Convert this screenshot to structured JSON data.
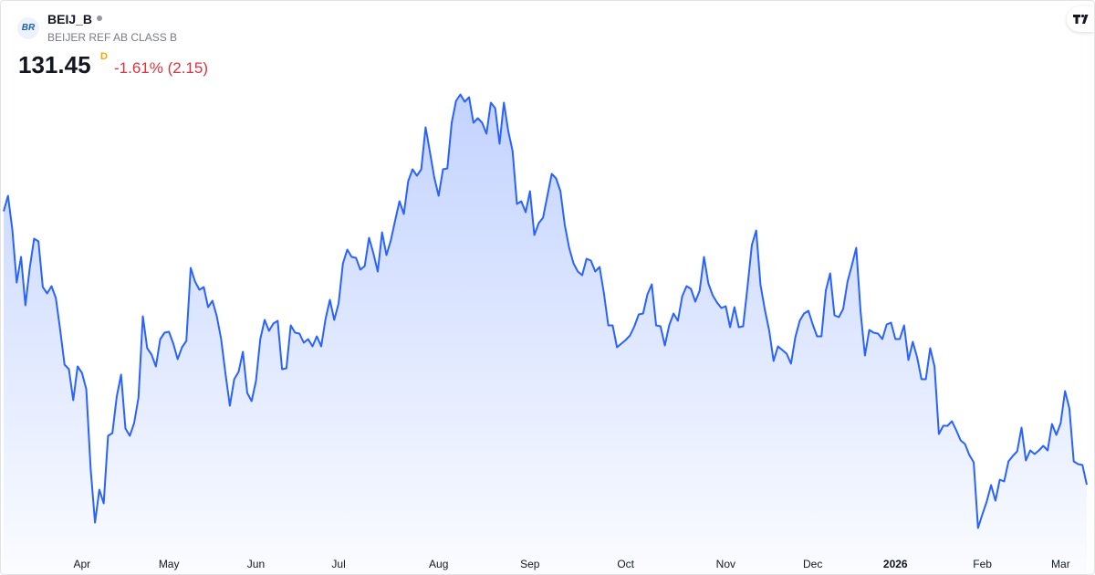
{
  "header": {
    "logo_text": "BR",
    "symbol": "BEIJ_B",
    "description": "BEIJER REF AB CLASS B",
    "last_price": "131.45",
    "interval_flag": "D",
    "change": "-1.61% (2.15)"
  },
  "chart_data": {
    "type": "area",
    "color": "#2962ff",
    "values": [
      161.4,
      163.1,
      159.4,
      153.6,
      156.4,
      151.1,
      155.2,
      158.4,
      158.1,
      153.1,
      152.4,
      153.2,
      151.9,
      148.4,
      144.6,
      144.1,
      140.7,
      144.4,
      143.7,
      141.9,
      133.2,
      127.3,
      130.9,
      129.4,
      136.8,
      137.1,
      141.1,
      143.5,
      137.6,
      136.8,
      138.2,
      141.0,
      149.9,
      146.4,
      145.7,
      144.4,
      147.4,
      148.1,
      148.2,
      146.9,
      145.2,
      146.5,
      147.2,
      155.2,
      153.7,
      152.8,
      153.1,
      150.9,
      151.6,
      149.9,
      147.4,
      143.6,
      140.1,
      143.0,
      143.8,
      146.0,
      141.5,
      140.6,
      142.8,
      147.4,
      149.5,
      148.3,
      149.1,
      149.4,
      144.1,
      144.2,
      148.9,
      148.1,
      148.0,
      147.0,
      147.4,
      146.6,
      147.7,
      146.6,
      149.6,
      151.7,
      149.5,
      151.3,
      155.7,
      157.2,
      156.4,
      156.3,
      155.0,
      155.4,
      158.5,
      156.8,
      154.8,
      159.1,
      156.6,
      158.2,
      160.4,
      162.5,
      161.1,
      164.7,
      166.0,
      165.3,
      166.0,
      170.6,
      167.9,
      165.1,
      163.1,
      166.0,
      166.1,
      171.1,
      173.5,
      174.2,
      173.4,
      173.9,
      171.1,
      171.6,
      171.1,
      169.9,
      173.3,
      172.7,
      168.8,
      173.3,
      170.2,
      168.0,
      162.2,
      162.5,
      161.3,
      163.6,
      158.8,
      160.1,
      160.7,
      163.1,
      165.5,
      165.0,
      163.6,
      159.9,
      157.4,
      155.7,
      154.8,
      154.4,
      156.2,
      156.0,
      154.8,
      155.3,
      152.4,
      148.9,
      148.9,
      146.5,
      146.9,
      147.3,
      147.8,
      148.8,
      150.1,
      150.2,
      152.3,
      153.4,
      148.9,
      148.8,
      146.7,
      148.9,
      150.2,
      149.4,
      152.1,
      153.2,
      152.9,
      151.5,
      152.7,
      156.4,
      153.5,
      152.2,
      151.4,
      150.8,
      151.0,
      148.7,
      150.9,
      148.7,
      148.8,
      153.1,
      157.7,
      159.3,
      153.3,
      150.6,
      148.3,
      145.0,
      146.6,
      146.2,
      145.8,
      144.7,
      147.6,
      149.4,
      150.2,
      150.5,
      149.0,
      147.7,
      147.7,
      152.7,
      154.6,
      150.0,
      149.8,
      150.7,
      153.7,
      155.5,
      157.4,
      150.4,
      145.6,
      148.4,
      148.1,
      148.0,
      147.4,
      149.0,
      149.2,
      147.4,
      147.4,
      148.9,
      145.1,
      147.1,
      145.4,
      143.0,
      143.0,
      146.4,
      144.4,
      137.0,
      137.9,
      137.9,
      138.4,
      137.4,
      136.3,
      135.9,
      134.7,
      133.9,
      126.7,
      128.2,
      129.6,
      131.4,
      129.7,
      132.0,
      131.8,
      134.0,
      134.6,
      135.1,
      137.7,
      134.1,
      135.2,
      134.8,
      135.2,
      135.7,
      135.2,
      138.1,
      136.9,
      138.2,
      141.7,
      139.8,
      134.0,
      133.7,
      133.6,
      131.45
    ],
    "xlim": [
      0,
      249
    ],
    "ylim": [
      126,
      175
    ],
    "xticks": [
      {
        "value": 18,
        "label": "Apr"
      },
      {
        "value": 38,
        "label": "May"
      },
      {
        "value": 58,
        "label": "Jun"
      },
      {
        "value": 77,
        "label": "Jul"
      },
      {
        "value": 100,
        "label": "Aug"
      },
      {
        "value": 121,
        "label": "Sep"
      },
      {
        "value": 143,
        "label": "Oct"
      },
      {
        "value": 166,
        "label": "Nov"
      },
      {
        "value": 186,
        "label": "Dec"
      },
      {
        "value": 205,
        "label": "2026",
        "bold": true
      },
      {
        "value": 225,
        "label": "Feb"
      },
      {
        "value": 243,
        "label": "Mar"
      }
    ]
  }
}
